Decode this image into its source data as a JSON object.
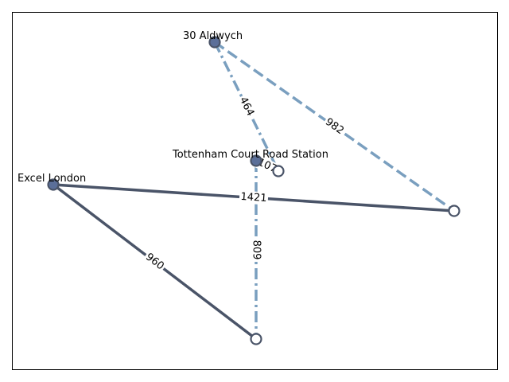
{
  "colors": {
    "solid_edge": "#4a5468",
    "dashed_edge": "#7a9fbf",
    "node_stroke": "#4a5468",
    "node_filled": "#5b6f99",
    "node_empty": "#ffffff"
  },
  "nodes": [
    {
      "id": "aldwych",
      "label": "30 Aldwych",
      "filled": true
    },
    {
      "id": "tottenham",
      "label": "Tottenham Court Road Station",
      "filled": true
    },
    {
      "id": "excel",
      "label": "Excel London",
      "filled": true
    },
    {
      "id": "n4",
      "label": "",
      "filled": false
    },
    {
      "id": "n5",
      "label": "",
      "filled": false
    },
    {
      "id": "n6",
      "label": "",
      "filled": false
    }
  ],
  "edges": [
    {
      "from": "aldwych",
      "to": "n4",
      "label": "464",
      "style": "dashdot"
    },
    {
      "from": "aldwych",
      "to": "n5",
      "label": "982",
      "style": "dashed"
    },
    {
      "from": "tottenham",
      "to": "n4",
      "label": "107",
      "style": "dashed"
    },
    {
      "from": "tottenham",
      "to": "n6",
      "label": "809",
      "style": "dashdot"
    },
    {
      "from": "excel",
      "to": "n5",
      "label": "1421",
      "style": "solid"
    },
    {
      "from": "excel",
      "to": "n6",
      "label": "960",
      "style": "solid"
    }
  ]
}
